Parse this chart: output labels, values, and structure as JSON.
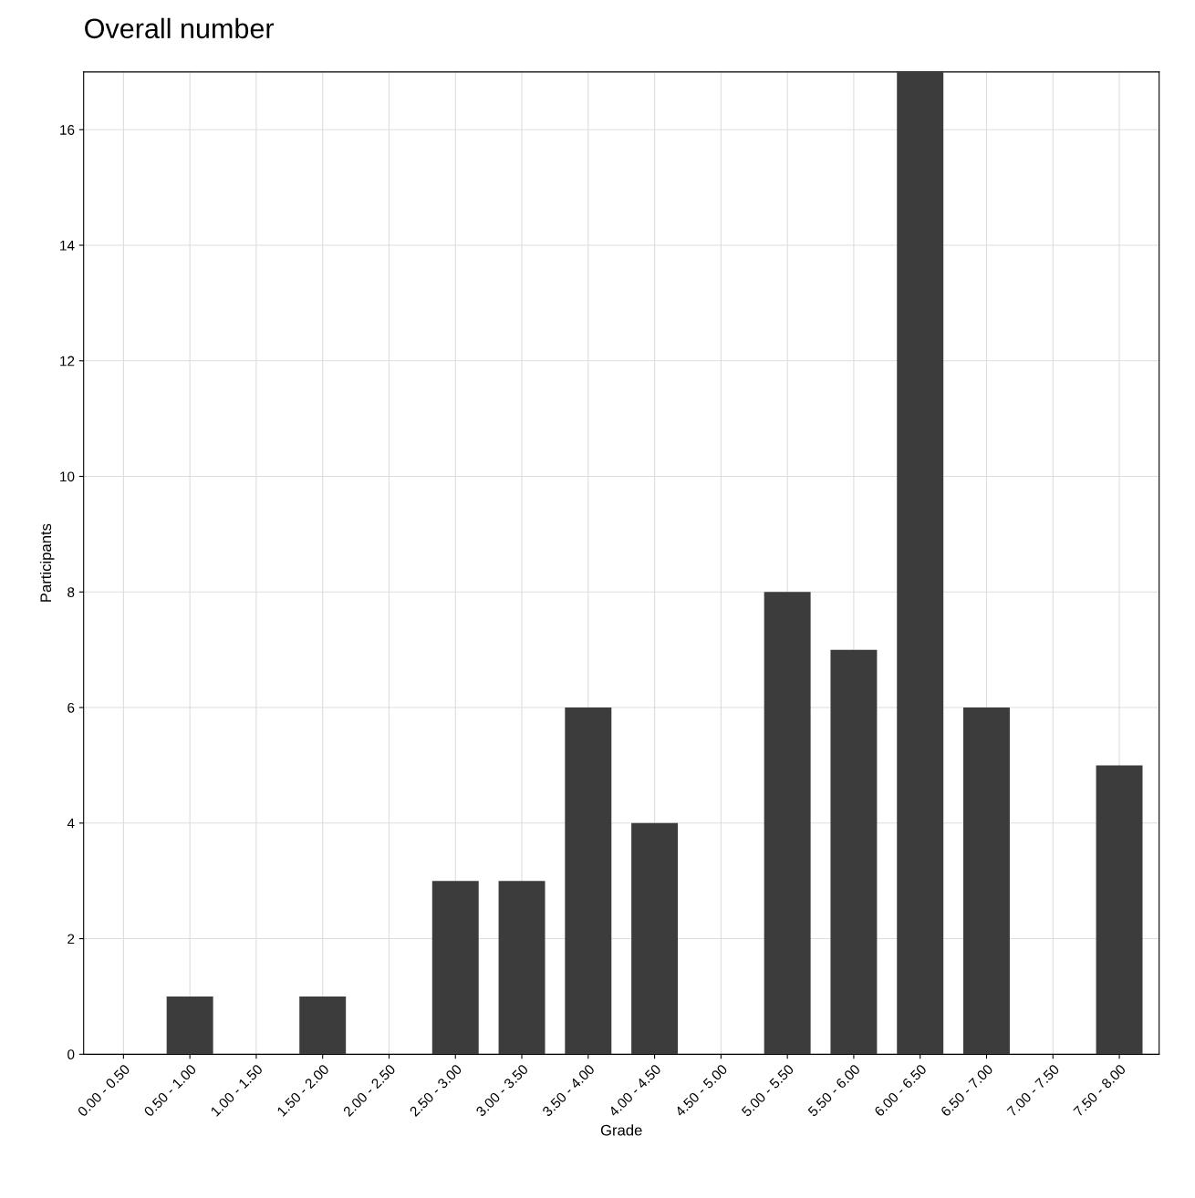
{
  "chart_data": {
    "type": "bar",
    "title": "Overall number",
    "xlabel": "Grade",
    "ylabel": "Participants",
    "categories": [
      "0.00 - 0.50",
      "0.50 - 1.00",
      "1.00 - 1.50",
      "1.50 - 2.00",
      "2.00 - 2.50",
      "2.50 - 3.00",
      "3.00 - 3.50",
      "3.50 - 4.00",
      "4.00 - 4.50",
      "4.50 - 5.00",
      "5.00 - 5.50",
      "5.50 - 6.00",
      "6.00 - 6.50",
      "6.50 - 7.00",
      "7.00 - 7.50",
      "7.50 - 8.00"
    ],
    "values": [
      0,
      1,
      0,
      1,
      0,
      3,
      3,
      6,
      4,
      0,
      8,
      7,
      17,
      6,
      0,
      5
    ],
    "color": "#3c3c3c",
    "ylim": [
      0,
      17
    ],
    "yticks": [
      0,
      2,
      4,
      6,
      8,
      10,
      12,
      14,
      16
    ],
    "grid": true,
    "legend": false
  }
}
